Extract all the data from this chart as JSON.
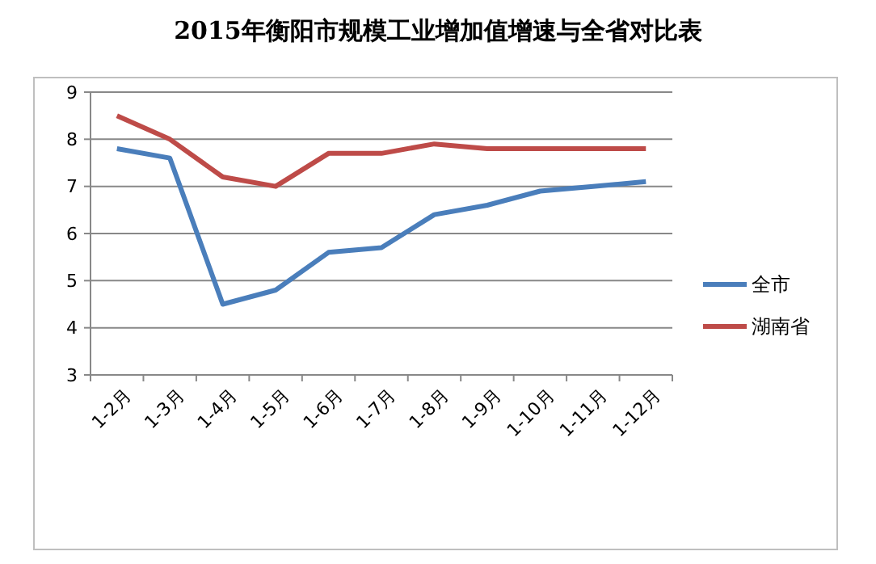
{
  "chart_data": {
    "type": "line",
    "title": "2015年衡阳市规模工业增加值增速与全省对比表",
    "categories": [
      "1-2月",
      "1-3月",
      "1-4月",
      "1-5月",
      "1-6月",
      "1-7月",
      "1-8月",
      "1-9月",
      "1-10月",
      "1-11月",
      "1-12月"
    ],
    "series": [
      {
        "name": "全市",
        "color": "#4a7ebb",
        "values": [
          7.8,
          7.6,
          4.5,
          4.8,
          5.6,
          5.7,
          6.4,
          6.6,
          6.9,
          7.0,
          7.1
        ]
      },
      {
        "name": "湖南省",
        "color": "#be4b48",
        "values": [
          8.5,
          8.0,
          7.2,
          7.0,
          7.7,
          7.7,
          7.9,
          7.8,
          7.8,
          7.8,
          7.8
        ]
      }
    ],
    "ylim": [
      3,
      9
    ],
    "yticks": [
      3,
      4,
      5,
      6,
      7,
      8,
      9
    ],
    "grid": "y",
    "legend": "right",
    "marker": "none",
    "line_style": "solid"
  }
}
